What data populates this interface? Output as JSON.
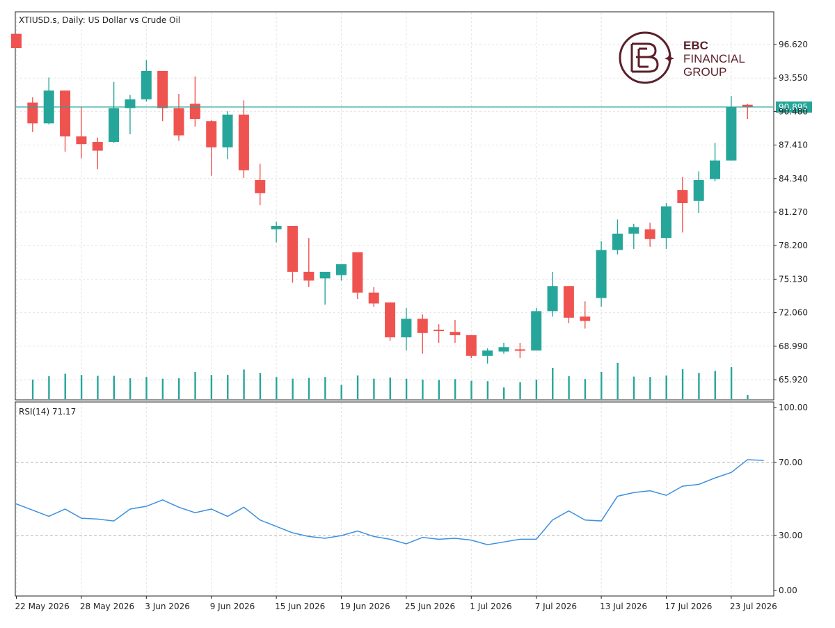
{
  "header": {
    "title": "XTIUSD.s, Daily:  US Dollar vs Crude Oil"
  },
  "logo": {
    "line1": "EBC",
    "line2": "FINANCIAL",
    "line3": "GROUP",
    "color": "#5b1f2a"
  },
  "rsi_panel": {
    "title": "RSI(14) 71.17"
  },
  "colors": {
    "up": "#26a69a",
    "down": "#ef5350",
    "price_line": "#26a69a",
    "rsi_line": "#3d8fe0",
    "grid": "#e3e3e3",
    "level": "#b0b0b0",
    "frame": "#222222"
  },
  "chart_data": [
    {
      "type": "candlestick",
      "title": "XTIUSD.s, Daily:  US Dollar vs Crude Oil",
      "current_price_label": "90.895",
      "current_price": 90.895,
      "ylim": [
        63.5,
        99.0
      ],
      "y_ticks": [
        "96.620",
        "93.550",
        "90.480",
        "87.410",
        "84.340",
        "81.270",
        "78.200",
        "75.130",
        "72.060",
        "68.990",
        "65.920"
      ],
      "y_tick_values": [
        96.62,
        93.55,
        90.48,
        87.41,
        84.34,
        81.27,
        78.2,
        75.13,
        72.06,
        68.99,
        65.92
      ],
      "x_ticks": [
        "22 May 2026",
        "28 May 2026",
        "3 Jun 2026",
        "9 Jun 2026",
        "15 Jun 2026",
        "19 Jun 2026",
        "25 Jun 2026",
        "1 Jul 2026",
        "7 Jul 2026",
        "13 Jul 2026",
        "17 Jul 2026",
        "23 Jul 2026"
      ],
      "x_tick_index": [
        0,
        4,
        8,
        12,
        16,
        20,
        24,
        28,
        32,
        36,
        40,
        44
      ],
      "grid": true,
      "candles": [
        {
          "o": 97.6,
          "h": 97.6,
          "l": 96.3,
          "c": 96.3
        },
        {
          "o": 91.3,
          "h": 91.8,
          "l": 88.6,
          "c": 89.4
        },
        {
          "o": 89.4,
          "h": 93.6,
          "l": 89.3,
          "c": 92.4
        },
        {
          "o": 92.4,
          "h": 92.4,
          "l": 86.8,
          "c": 88.2
        },
        {
          "o": 88.2,
          "h": 90.9,
          "l": 86.2,
          "c": 87.5
        },
        {
          "o": 87.7,
          "h": 88.1,
          "l": 85.2,
          "c": 86.9
        },
        {
          "o": 87.7,
          "h": 93.2,
          "l": 87.6,
          "c": 90.8
        },
        {
          "o": 90.8,
          "h": 92.0,
          "l": 88.4,
          "c": 91.6
        },
        {
          "o": 91.6,
          "h": 95.2,
          "l": 91.4,
          "c": 94.2
        },
        {
          "o": 94.2,
          "h": 94.2,
          "l": 89.6,
          "c": 90.8
        },
        {
          "o": 90.8,
          "h": 92.1,
          "l": 87.8,
          "c": 88.3
        },
        {
          "o": 91.2,
          "h": 93.7,
          "l": 89.1,
          "c": 89.8
        },
        {
          "o": 89.6,
          "h": 89.7,
          "l": 84.6,
          "c": 87.2
        },
        {
          "o": 87.2,
          "h": 90.5,
          "l": 86.1,
          "c": 90.2
        },
        {
          "o": 90.2,
          "h": 91.5,
          "l": 84.4,
          "c": 85.1
        },
        {
          "o": 84.2,
          "h": 85.7,
          "l": 81.9,
          "c": 83.0
        },
        {
          "o": 79.7,
          "h": 80.4,
          "l": 78.5,
          "c": 80.0
        },
        {
          "o": 80.0,
          "h": 80.0,
          "l": 74.8,
          "c": 75.8
        },
        {
          "o": 75.8,
          "h": 78.9,
          "l": 74.4,
          "c": 75.0
        },
        {
          "o": 75.2,
          "h": 75.8,
          "l": 72.8,
          "c": 75.8
        },
        {
          "o": 75.5,
          "h": 76.5,
          "l": 75.0,
          "c": 76.5
        },
        {
          "o": 77.6,
          "h": 77.6,
          "l": 73.3,
          "c": 73.9
        },
        {
          "o": 73.9,
          "h": 74.4,
          "l": 72.6,
          "c": 72.9
        },
        {
          "o": 73.0,
          "h": 73.0,
          "l": 69.5,
          "c": 69.8
        },
        {
          "o": 69.8,
          "h": 72.5,
          "l": 68.6,
          "c": 71.5
        },
        {
          "o": 71.5,
          "h": 71.9,
          "l": 68.3,
          "c": 70.2
        },
        {
          "o": 70.5,
          "h": 71.0,
          "l": 69.3,
          "c": 70.4
        },
        {
          "o": 70.3,
          "h": 71.4,
          "l": 69.3,
          "c": 70.0
        },
        {
          "o": 70.0,
          "h": 70.0,
          "l": 67.9,
          "c": 68.1
        },
        {
          "o": 68.1,
          "h": 68.8,
          "l": 67.4,
          "c": 68.6
        },
        {
          "o": 68.5,
          "h": 69.3,
          "l": 68.3,
          "c": 68.9
        },
        {
          "o": 68.7,
          "h": 69.3,
          "l": 67.9,
          "c": 68.6
        },
        {
          "o": 68.6,
          "h": 72.5,
          "l": 68.6,
          "c": 72.2
        },
        {
          "o": 72.2,
          "h": 75.8,
          "l": 71.7,
          "c": 74.5
        },
        {
          "o": 74.5,
          "h": 74.5,
          "l": 71.1,
          "c": 71.6
        },
        {
          "o": 71.7,
          "h": 73.1,
          "l": 70.6,
          "c": 71.3
        },
        {
          "o": 73.4,
          "h": 78.6,
          "l": 72.6,
          "c": 77.8
        },
        {
          "o": 77.8,
          "h": 80.6,
          "l": 77.4,
          "c": 79.3
        },
        {
          "o": 79.3,
          "h": 80.2,
          "l": 77.9,
          "c": 79.9
        },
        {
          "o": 79.7,
          "h": 80.3,
          "l": 78.1,
          "c": 78.8
        },
        {
          "o": 78.9,
          "h": 82.1,
          "l": 77.9,
          "c": 81.8
        },
        {
          "o": 83.3,
          "h": 84.5,
          "l": 79.4,
          "c": 82.1
        },
        {
          "o": 82.3,
          "h": 85.0,
          "l": 81.2,
          "c": 84.2
        },
        {
          "o": 84.3,
          "h": 87.6,
          "l": 84.1,
          "c": 86.0
        },
        {
          "o": 86.0,
          "h": 91.9,
          "l": 86.0,
          "c": 90.9
        },
        {
          "o": 91.1,
          "h": 91.2,
          "l": 89.8,
          "c": 90.9
        }
      ],
      "volume_relative": [
        0,
        0.47,
        0.55,
        0.61,
        0.58,
        0.56,
        0.56,
        0.5,
        0.53,
        0.49,
        0.5,
        0.65,
        0.58,
        0.58,
        0.71,
        0.63,
        0.53,
        0.49,
        0.51,
        0.53,
        0.34,
        0.57,
        0.49,
        0.52,
        0.49,
        0.47,
        0.46,
        0.48,
        0.44,
        0.43,
        0.28,
        0.41,
        0.47,
        0.75,
        0.55,
        0.48,
        0.65,
        0.87,
        0.54,
        0.53,
        0.57,
        0.72,
        0.63,
        0.68,
        0.77,
        0.1
      ]
    },
    {
      "type": "line",
      "title": "RSI(14) 71.17",
      "name": "RSI(14)",
      "ylim": [
        0,
        100
      ],
      "y_ticks": [
        "100.00",
        "70.00",
        "30.00",
        "0.00"
      ],
      "y_tick_values": [
        100,
        70,
        30,
        0
      ],
      "levels": [
        70,
        30
      ],
      "values": [
        null,
        47.5,
        40.5,
        44.5,
        39.5,
        39.0,
        38.0,
        44.5,
        46.0,
        49.5,
        45.5,
        42.5,
        44.5,
        40.5,
        45.5,
        38.5,
        35.0,
        31.5,
        29.5,
        28.5,
        30.0,
        32.5,
        29.5,
        28.0,
        25.5,
        29.0,
        28.0,
        28.5,
        27.5,
        25.0,
        26.5,
        28.0,
        28.0,
        38.5,
        43.5,
        38.5,
        38.0,
        51.5,
        53.5,
        54.5,
        52.0,
        57.0,
        58.0,
        61.5,
        64.5,
        71.5,
        71.1
      ]
    }
  ]
}
